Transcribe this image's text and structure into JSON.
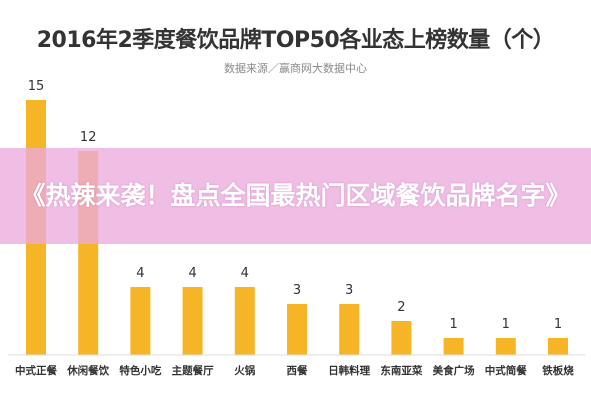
{
  "chart_data": {
    "type": "bar",
    "title": "2016年2季度餐饮品牌TOP50各业态上榜数量（个）",
    "subtitle": "数据来源／赢商网大数据中心",
    "categories": [
      "中式正餐",
      "休闲餐饮",
      "特色小吃",
      "主题餐厅",
      "火锅",
      "西餐",
      "日韩料理",
      "东南亚菜",
      "美食广场",
      "中式简餐",
      "铁板烧"
    ],
    "values": [
      15,
      12,
      4,
      4,
      4,
      3,
      3,
      2,
      1,
      1,
      1
    ],
    "ylim": [
      0,
      15
    ],
    "grid": false,
    "bar_color": "#f5b526"
  },
  "banner": {
    "text": "《热辣来袭！盘点全国最热门区域餐饮品牌名字》",
    "color": "#ecaade"
  }
}
